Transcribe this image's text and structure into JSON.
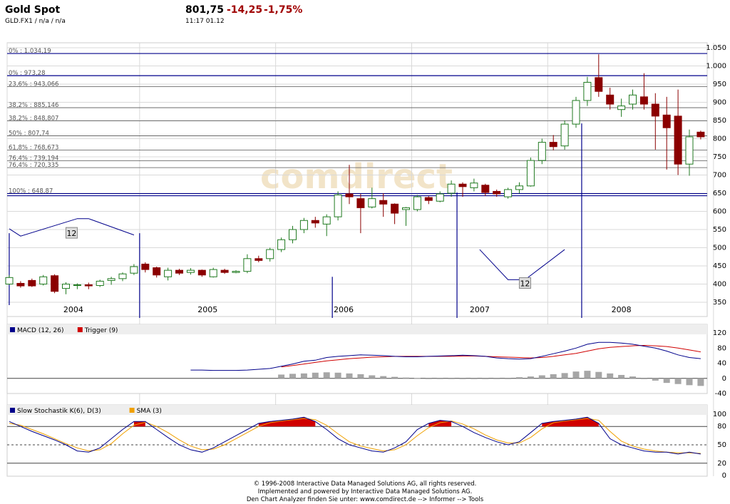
{
  "header": {
    "name": "Gold Spot",
    "sub": "GLD.FX1  /  n/a  /  n/a",
    "price": "801,75",
    "change": "-14,25",
    "change_pct": "-1,75%",
    "time": "11:17   01.12"
  },
  "colors": {
    "up_fill": "#ffffff",
    "up_stroke": "#207a20",
    "down_fill": "#8b0000",
    "blue": "#00008b",
    "red": "#d00000",
    "orange": "#f0a000",
    "gray_bar": "#a6a6a6",
    "grid": "#d9d9d9"
  },
  "watermark": "comdirect",
  "footer": [
    "© 1996-2008 Interactive Data Managed Solutions AG, all rights reserved.",
    "Implemented and powered by  Interactive Data Managed Solutions AG.",
    "Den Chart Analyzer finden Sie unter: www.comdirect.de --> Informer --> Tools"
  ],
  "chart_data": [
    {
      "type": "candlestick",
      "y_ticks": [
        "1.050",
        "1.000",
        "950",
        "900",
        "850",
        "800",
        "750",
        "700",
        "650",
        "600",
        "550",
        "500",
        "450",
        "400",
        "350"
      ],
      "ylim": [
        350,
        1050
      ],
      "x_labels": [
        "2004",
        "2005",
        "2006",
        "2007",
        "2008"
      ],
      "fib_levels": [
        {
          "label": "0% : 1.034,19",
          "value": 1034.19
        },
        {
          "label": "0% : 973,28",
          "value": 973.28
        },
        {
          "label": "23,6% : 943,066",
          "value": 943.066
        },
        {
          "label": "38,2% : 885,146",
          "value": 885.146
        },
        {
          "label": "38,2% : 848,807",
          "value": 848.807
        },
        {
          "label": "50% : 807,74",
          "value": 807.74
        },
        {
          "label": "61,8% : 768,673",
          "value": 768.673
        },
        {
          "label": "76,4% : 739,194",
          "value": 739.194
        },
        {
          "label": "76,4% : 720,335",
          "value": 720.335
        },
        {
          "label": "100% : 648,87",
          "value": 648.87
        }
      ],
      "cycle_labels": [
        "12",
        "12"
      ],
      "candles": [
        [
          400,
          418,
          425,
          398
        ],
        [
          402,
          395,
          408,
          390
        ],
        [
          410,
          395,
          415,
          392
        ],
        [
          400,
          420,
          425,
          396
        ],
        [
          423,
          380,
          427,
          375
        ],
        [
          388,
          400,
          405,
          372
        ],
        [
          398,
          398,
          402,
          386
        ],
        [
          398,
          395,
          404,
          386
        ],
        [
          396,
          408,
          412,
          392
        ],
        [
          410,
          415,
          420,
          398
        ],
        [
          415,
          428,
          432,
          408
        ],
        [
          430,
          448,
          455,
          425
        ],
        [
          455,
          440,
          460,
          432
        ],
        [
          445,
          425,
          448,
          418
        ],
        [
          420,
          438,
          445,
          410
        ],
        [
          438,
          430,
          442,
          425
        ],
        [
          432,
          438,
          444,
          426
        ],
        [
          438,
          425,
          440,
          420
        ],
        [
          420,
          440,
          445,
          418
        ],
        [
          438,
          432,
          442,
          428
        ],
        [
          432,
          435,
          438,
          430
        ],
        [
          435,
          470,
          482,
          430
        ],
        [
          470,
          465,
          478,
          460
        ],
        [
          470,
          495,
          500,
          462
        ],
        [
          495,
          522,
          528,
          488
        ],
        [
          522,
          550,
          560,
          512
        ],
        [
          550,
          575,
          582,
          540
        ],
        [
          575,
          568,
          585,
          555
        ],
        [
          565,
          585,
          592,
          532
        ],
        [
          585,
          645,
          655,
          575
        ],
        [
          648,
          640,
          728,
          620
        ],
        [
          635,
          610,
          648,
          540
        ],
        [
          612,
          635,
          665,
          608
        ],
        [
          630,
          620,
          650,
          585
        ],
        [
          620,
          595,
          622,
          565
        ],
        [
          605,
          610,
          612,
          560
        ],
        [
          605,
          640,
          645,
          600
        ],
        [
          638,
          630,
          642,
          620
        ],
        [
          628,
          648,
          655,
          625
        ],
        [
          650,
          675,
          685,
          640
        ],
        [
          675,
          668,
          680,
          640
        ],
        [
          665,
          678,
          690,
          655
        ],
        [
          672,
          652,
          676,
          642
        ],
        [
          655,
          648,
          660,
          640
        ],
        [
          640,
          660,
          665,
          635
        ],
        [
          660,
          670,
          680,
          650
        ],
        [
          670,
          740,
          748,
          668
        ],
        [
          740,
          790,
          800,
          730
        ],
        [
          790,
          778,
          810,
          768
        ],
        [
          780,
          840,
          850,
          770
        ],
        [
          840,
          905,
          915,
          830
        ],
        [
          905,
          955,
          970,
          890
        ],
        [
          968,
          930,
          1032,
          915
        ],
        [
          920,
          895,
          940,
          880
        ],
        [
          880,
          890,
          910,
          860
        ],
        [
          895,
          920,
          935,
          880
        ],
        [
          915,
          895,
          980,
          880
        ],
        [
          895,
          862,
          925,
          770
        ],
        [
          865,
          830,
          915,
          715
        ],
        [
          862,
          730,
          935,
          700
        ],
        [
          730,
          805,
          825,
          698
        ],
        [
          818,
          805,
          822,
          798
        ]
      ]
    },
    {
      "type": "line",
      "legend": [
        {
          "name": "MACD (12, 26)",
          "color": "#00008b"
        },
        {
          "name": "Trigger (9)",
          "color": "#d00000"
        }
      ],
      "y_ticks": [
        "120",
        "80",
        "40",
        "0",
        "-40"
      ],
      "ylim": [
        -40,
        120
      ],
      "macd": [
        null,
        null,
        null,
        null,
        null,
        null,
        null,
        null,
        null,
        null,
        null,
        null,
        null,
        null,
        null,
        null,
        22,
        22,
        21,
        21,
        21,
        22,
        24,
        26,
        32,
        38,
        45,
        48,
        55,
        58,
        60,
        62,
        61,
        60,
        58,
        57,
        57,
        58,
        59,
        60,
        61,
        60,
        58,
        54,
        52,
        51,
        52,
        58,
        65,
        72,
        80,
        90,
        95,
        95,
        93,
        90,
        85,
        80,
        72,
        62,
        55,
        52
      ],
      "trigger": [
        null,
        null,
        null,
        null,
        null,
        null,
        null,
        null,
        null,
        null,
        null,
        null,
        null,
        null,
        null,
        null,
        null,
        null,
        null,
        null,
        null,
        null,
        null,
        null,
        30,
        34,
        38,
        42,
        46,
        49,
        52,
        54,
        56,
        57,
        58,
        58,
        58,
        58,
        58,
        58,
        59,
        59,
        58,
        57,
        56,
        55,
        54,
        55,
        58,
        62,
        66,
        72,
        78,
        82,
        84,
        86,
        87,
        86,
        84,
        80,
        75,
        70
      ],
      "histogram": [
        null,
        null,
        null,
        null,
        null,
        null,
        null,
        null,
        null,
        null,
        null,
        null,
        null,
        null,
        null,
        null,
        null,
        null,
        null,
        null,
        null,
        null,
        null,
        null,
        10,
        12,
        13,
        15,
        16,
        15,
        13,
        11,
        8,
        6,
        4,
        2,
        1,
        0,
        0,
        -1,
        -2,
        -2,
        -2,
        -1,
        0,
        3,
        5,
        8,
        11,
        14,
        18,
        20,
        17,
        13,
        9,
        5,
        -2,
        -6,
        -12,
        -15,
        -18,
        -20
      ]
    },
    {
      "type": "line",
      "legend": [
        {
          "name": "Slow Stochastik K(6), D(3)",
          "color": "#00008b"
        },
        {
          "name": "SMA (3)",
          "color": "#f0a000"
        }
      ],
      "y_ticks": [
        "100",
        "80",
        "50",
        "20",
        "0"
      ],
      "ylim": [
        0,
        100
      ],
      "k": [
        88,
        80,
        72,
        65,
        58,
        50,
        40,
        38,
        45,
        60,
        75,
        88,
        88,
        75,
        62,
        50,
        42,
        38,
        45,
        55,
        65,
        75,
        85,
        88,
        90,
        92,
        95,
        88,
        75,
        60,
        50,
        45,
        40,
        38,
        45,
        55,
        75,
        85,
        90,
        88,
        80,
        70,
        62,
        55,
        50,
        55,
        70,
        85,
        88,
        90,
        92,
        95,
        85,
        60,
        50,
        45,
        40,
        38,
        38,
        35,
        38,
        35
      ],
      "d": [
        85,
        82,
        75,
        68,
        60,
        52,
        45,
        40,
        42,
        52,
        68,
        82,
        87,
        80,
        70,
        58,
        48,
        42,
        43,
        50,
        60,
        70,
        80,
        86,
        89,
        91,
        93,
        91,
        82,
        68,
        55,
        48,
        44,
        40,
        42,
        50,
        65,
        78,
        86,
        89,
        84,
        76,
        66,
        58,
        53,
        53,
        62,
        76,
        86,
        89,
        91,
        93,
        90,
        72,
        56,
        48,
        43,
        40,
        38,
        37,
        37,
        36
      ]
    }
  ]
}
